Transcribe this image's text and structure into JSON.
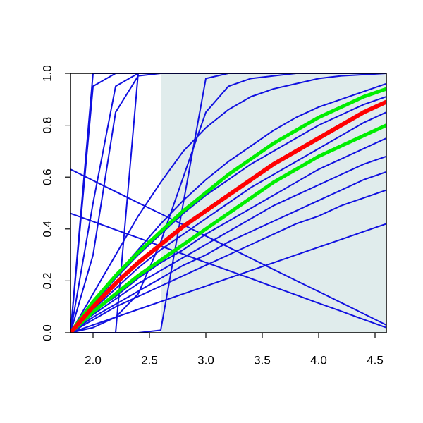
{
  "chart_data": {
    "type": "line",
    "x": [
      1.8,
      2.0,
      2.2,
      2.4,
      2.6,
      2.8,
      3.0,
      3.2,
      3.4,
      3.6,
      3.8,
      4.0,
      4.2,
      4.4,
      4.6
    ],
    "xlim": [
      1.8,
      4.6
    ],
    "ylim": [
      0,
      1
    ],
    "xticks": [
      {
        "value": 2,
        "label": "2.0"
      },
      {
        "value": 2.5,
        "label": "2.5"
      },
      {
        "value": 3,
        "label": "3.0"
      },
      {
        "value": 3.5,
        "label": "3.5"
      },
      {
        "value": 4,
        "label": "4.0"
      },
      {
        "value": 4.5,
        "label": "4.5"
      }
    ],
    "yticks": [
      {
        "value": 0,
        "label": "0.0"
      },
      {
        "value": 0.2,
        "label": "0.2"
      },
      {
        "value": 0.4,
        "label": "0.4"
      },
      {
        "value": 0.6,
        "label": "0.6"
      },
      {
        "value": 0.8,
        "label": "0.8"
      },
      {
        "value": 1,
        "label": "1.0"
      }
    ],
    "shaded_region": {
      "xlim": [
        2.6,
        4.6
      ],
      "color": "#e0ecec"
    },
    "series": [
      {
        "color": "#1010e0",
        "width": 2,
        "values": [
          0,
          1,
          1,
          1,
          1,
          1,
          1,
          1,
          1,
          1,
          1,
          1,
          1,
          1,
          1
        ]
      },
      {
        "color": "#1010e0",
        "width": 2,
        "values": [
          0,
          0.95,
          1,
          1,
          1,
          1,
          1,
          1,
          1,
          1,
          1,
          1,
          1,
          1,
          1
        ]
      },
      {
        "color": "#1010e0",
        "width": 2,
        "values": [
          0,
          0.5,
          0.95,
          1,
          1,
          1,
          1,
          1,
          1,
          1,
          1,
          1,
          1,
          1,
          1
        ]
      },
      {
        "color": "#1010e0",
        "width": 2,
        "values": [
          0,
          0.3,
          0.85,
          0.99,
          1,
          1,
          1,
          1,
          1,
          1,
          1,
          1,
          1,
          1,
          1
        ]
      },
      {
        "color": "#1010e0",
        "width": 2,
        "values": [
          0,
          0,
          0,
          1,
          1,
          1,
          1,
          1,
          1,
          1,
          1,
          1,
          1,
          1,
          1
        ]
      },
      {
        "color": "#1010e0",
        "width": 2,
        "values": [
          0,
          0,
          0,
          0,
          0.01,
          0.5,
          0.98,
          1,
          1,
          1,
          1,
          1,
          1,
          1,
          1
        ]
      },
      {
        "color": "#1010e0",
        "width": 2,
        "values": [
          0,
          0.02,
          0.06,
          0.15,
          0.35,
          0.6,
          0.85,
          0.95,
          0.98,
          0.99,
          1,
          1,
          1,
          1,
          1
        ]
      },
      {
        "color": "#1010e0",
        "width": 2,
        "values": [
          0.63,
          0.587,
          0.544,
          0.501,
          0.459,
          0.416,
          0.373,
          0.33,
          0.287,
          0.244,
          0.201,
          0.159,
          0.116,
          0.073,
          0.03
        ]
      },
      {
        "color": "#1010e0",
        "width": 2,
        "values": [
          0.46,
          0.429,
          0.397,
          0.366,
          0.334,
          0.303,
          0.271,
          0.24,
          0.209,
          0.177,
          0.146,
          0.114,
          0.083,
          0.051,
          0.02
        ]
      },
      {
        "color": "#1010e0",
        "width": 2,
        "values": [
          0,
          0.15,
          0.3,
          0.45,
          0.58,
          0.7,
          0.79,
          0.86,
          0.91,
          0.94,
          0.96,
          0.98,
          0.99,
          0.995,
          1
        ]
      },
      {
        "color": "#1010e0",
        "width": 2,
        "values": [
          0,
          0.11,
          0.22,
          0.32,
          0.42,
          0.51,
          0.59,
          0.66,
          0.72,
          0.78,
          0.83,
          0.87,
          0.9,
          0.93,
          0.96
        ]
      },
      {
        "color": "#1010e0",
        "width": 2,
        "values": [
          0,
          0.03,
          0.06,
          0.09,
          0.12,
          0.15,
          0.18,
          0.21,
          0.24,
          0.27,
          0.3,
          0.33,
          0.36,
          0.39,
          0.42
        ]
      },
      {
        "color": "#1010e0",
        "width": 2,
        "values": [
          0,
          0.05,
          0.1,
          0.14,
          0.18,
          0.22,
          0.26,
          0.3,
          0.34,
          0.38,
          0.42,
          0.45,
          0.49,
          0.52,
          0.55
        ]
      },
      {
        "color": "#1010e0",
        "width": 2,
        "values": [
          0,
          0.06,
          0.11,
          0.16,
          0.21,
          0.26,
          0.3,
          0.35,
          0.39,
          0.43,
          0.47,
          0.51,
          0.55,
          0.59,
          0.62
        ]
      },
      {
        "color": "#1010e0",
        "width": 2,
        "values": [
          0,
          0.07,
          0.13,
          0.19,
          0.24,
          0.29,
          0.34,
          0.39,
          0.44,
          0.49,
          0.53,
          0.57,
          0.61,
          0.65,
          0.68
        ]
      },
      {
        "color": "#1010e0",
        "width": 2,
        "values": [
          0,
          0.08,
          0.14,
          0.21,
          0.27,
          0.32,
          0.38,
          0.43,
          0.48,
          0.53,
          0.58,
          0.63,
          0.67,
          0.71,
          0.75
        ]
      },
      {
        "color": "#1010e0",
        "width": 2,
        "values": [
          0,
          0.09,
          0.17,
          0.25,
          0.32,
          0.38,
          0.44,
          0.5,
          0.56,
          0.61,
          0.66,
          0.71,
          0.76,
          0.81,
          0.85
        ]
      },
      {
        "color": "#1010e0",
        "width": 2,
        "values": [
          0,
          0.11,
          0.21,
          0.3,
          0.38,
          0.46,
          0.53,
          0.59,
          0.65,
          0.7,
          0.75,
          0.8,
          0.84,
          0.88,
          0.91
        ]
      },
      {
        "color": "#00ee00",
        "width": 5,
        "values": [
          0,
          0.12,
          0.22,
          0.31,
          0.39,
          0.47,
          0.54,
          0.61,
          0.67,
          0.73,
          0.78,
          0.83,
          0.87,
          0.91,
          0.94
        ]
      },
      {
        "color": "#00ee00",
        "width": 5,
        "values": [
          0,
          0.08,
          0.15,
          0.22,
          0.28,
          0.34,
          0.4,
          0.46,
          0.52,
          0.58,
          0.63,
          0.68,
          0.72,
          0.76,
          0.8
        ]
      },
      {
        "color": "#ff0000",
        "width": 6,
        "values": [
          0,
          0.1,
          0.19,
          0.27,
          0.34,
          0.41,
          0.47,
          0.53,
          0.59,
          0.65,
          0.7,
          0.75,
          0.8,
          0.85,
          0.89
        ]
      }
    ]
  }
}
